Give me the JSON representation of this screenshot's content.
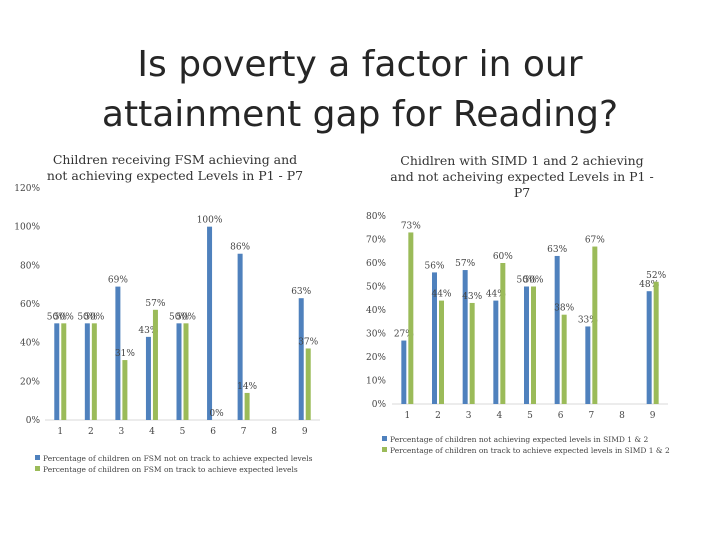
{
  "slide": {
    "title_line1": "Is poverty a factor in our",
    "title_line2": "attainment gap for Reading?"
  },
  "colors": {
    "series1": "#4f81bd",
    "series2": "#9bbb59",
    "axis": "#d9d9d9"
  },
  "chart_data": [
    {
      "type": "bar",
      "title_lines": [
        "Children receiving FSM achieving and",
        "not achieving expected Levels in P1 - P7"
      ],
      "categories": [
        "1",
        "2",
        "3",
        "4",
        "5",
        "6",
        "7",
        "8",
        "9"
      ],
      "ylim": [
        0,
        120
      ],
      "yticks": [
        0,
        20,
        40,
        60,
        80,
        100,
        120
      ],
      "series": [
        {
          "name": "Percentage of children on FSM not on track to achieve expected levels",
          "values": [
            50,
            50,
            69,
            43,
            50,
            100,
            86,
            null,
            63
          ],
          "labels": [
            "50%",
            "50%",
            "69%",
            "43%",
            "50%",
            "100%",
            "86%",
            "",
            "63%"
          ]
        },
        {
          "name": "Percentage of children on FSM on track to achieve expected levels",
          "values": [
            50,
            50,
            31,
            57,
            50,
            0,
            14,
            null,
            37
          ],
          "labels": [
            "50%",
            "50%",
            "31%",
            "57%",
            "50%",
            "0%",
            "14%",
            "",
            "37%"
          ]
        }
      ],
      "legend": "bottom"
    },
    {
      "type": "bar",
      "title_lines": [
        "Chidlren with SIMD 1 and 2 achieving",
        "and not acheiving expected Levels in P1 -",
        "P7"
      ],
      "categories": [
        "1",
        "2",
        "3",
        "4",
        "5",
        "6",
        "7",
        "8",
        "9"
      ],
      "ylim": [
        0,
        80
      ],
      "yticks": [
        0,
        10,
        20,
        30,
        40,
        50,
        60,
        70,
        80
      ],
      "series": [
        {
          "name": "Percentage of children not achieving expected levels in SIMD 1 & 2",
          "values": [
            27,
            56,
            57,
            44,
            50,
            63,
            33,
            null,
            48
          ],
          "labels": [
            "27%",
            "56%",
            "57%",
            "44%",
            "50%",
            "63%",
            "33%",
            "",
            "48%"
          ]
        },
        {
          "name": "Percentage of children on track to achieve expected levels in SIMD 1 & 2",
          "values": [
            73,
            44,
            43,
            60,
            50,
            38,
            67,
            null,
            52
          ],
          "labels": [
            "73%",
            "44%",
            "43%",
            "60%",
            "50%",
            "38%",
            "67%",
            "",
            "52%"
          ]
        }
      ],
      "legend": "bottom"
    }
  ]
}
